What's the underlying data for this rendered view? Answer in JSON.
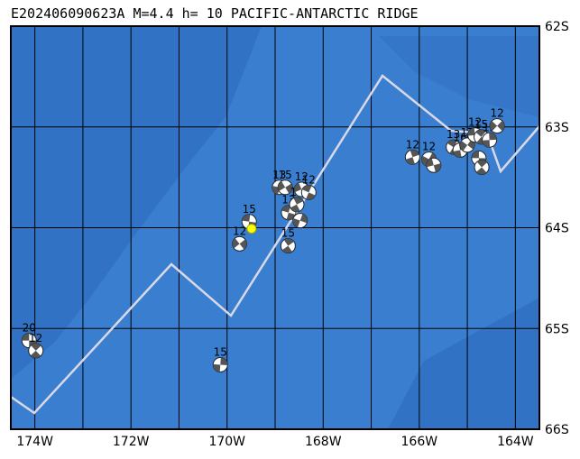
{
  "map": {
    "title": "E202406090623A M=4.4 h= 10 PACIFIC-ANTARCTIC RIDGE",
    "lonlim": [
      -174.5,
      -163.5
    ],
    "latlim": [
      -66,
      -62
    ],
    "lon_ticks": [
      {
        "value": -174,
        "label": "174W"
      },
      {
        "value": -172,
        "label": "172W"
      },
      {
        "value": -170,
        "label": "170W"
      },
      {
        "value": -168,
        "label": "168W"
      },
      {
        "value": -166,
        "label": "166W"
      },
      {
        "value": -164,
        "label": "164W"
      }
    ],
    "lon_grid": [
      -173,
      -171,
      -169,
      -167,
      -165
    ],
    "lat_ticks": [
      {
        "value": -62,
        "label": "62S"
      },
      {
        "value": -63,
        "label": "63S"
      },
      {
        "value": -64,
        "label": "64S"
      },
      {
        "value": -65,
        "label": "65S"
      },
      {
        "value": -66,
        "label": "66S"
      }
    ],
    "epicenter": {
      "lon": -169.49,
      "lat": -64.01,
      "color": "#ffff00"
    },
    "events": [
      {
        "lon": -174.12,
        "lat": -65.12,
        "label": "20"
      },
      {
        "lon": -173.98,
        "lat": -65.22,
        "label": "12"
      },
      {
        "lon": -170.14,
        "lat": -65.36,
        "label": "15"
      },
      {
        "lon": -169.74,
        "lat": -64.16,
        "label": "12"
      },
      {
        "lon": -169.54,
        "lat": -63.94,
        "label": "15"
      },
      {
        "lon": -168.73,
        "lat": -64.18,
        "label": "15"
      },
      {
        "lon": -168.91,
        "lat": -63.6,
        "label": "13"
      },
      {
        "lon": -168.79,
        "lat": -63.6,
        "label": "15"
      },
      {
        "lon": -168.72,
        "lat": -63.85,
        "label": "13"
      },
      {
        "lon": -168.55,
        "lat": -63.77,
        "label": "15"
      },
      {
        "lon": -168.48,
        "lat": -63.93
      },
      {
        "lon": -168.45,
        "lat": -63.62,
        "label": "12"
      },
      {
        "lon": -168.3,
        "lat": -63.65,
        "label": "12"
      },
      {
        "lon": -166.14,
        "lat": -63.3,
        "label": "12"
      },
      {
        "lon": -165.8,
        "lat": -63.32,
        "label": "12"
      },
      {
        "lon": -165.7,
        "lat": -63.38
      },
      {
        "lon": -165.29,
        "lat": -63.2,
        "label": "13"
      },
      {
        "lon": -165.15,
        "lat": -63.23,
        "label": "16"
      },
      {
        "lon": -165.0,
        "lat": -63.18,
        "label": "17"
      },
      {
        "lon": -164.84,
        "lat": -63.08,
        "label": "12"
      },
      {
        "lon": -164.71,
        "lat": -63.1,
        "label": "15"
      },
      {
        "lon": -164.54,
        "lat": -63.13,
        "label": "12"
      },
      {
        "lon": -164.38,
        "lat": -62.99,
        "label": "12"
      },
      {
        "lon": -164.76,
        "lat": -63.31
      },
      {
        "lon": -164.7,
        "lat": -63.4
      }
    ]
  }
}
